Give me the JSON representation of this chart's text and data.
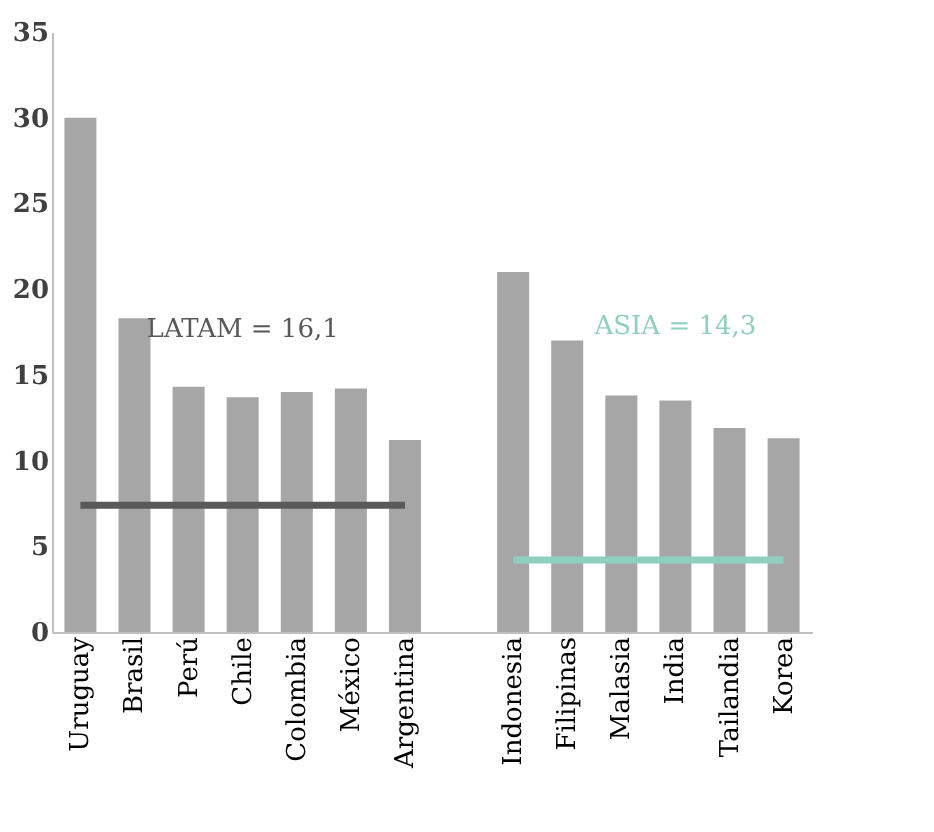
{
  "chart_data": {
    "type": "bar",
    "categories": [
      "Uruguay",
      "Brasil",
      "Perú",
      "Chile",
      "Colombia",
      "México",
      "Argentina",
      null,
      "Indonesia",
      "Filipinas",
      "Malasia",
      "India",
      "Tailandia",
      "Korea"
    ],
    "series": [
      {
        "color": "#a6a6a6",
        "values": [
          30,
          18.3,
          14.3,
          13.7,
          14.0,
          14.2,
          11.2,
          null,
          21.0,
          17.0,
          13.8,
          13.5,
          11.9,
          11.3
        ]
      },
      {
        "type": "line",
        "name": "LATAM = 16,1",
        "color": "#595959",
        "values": [
          7.4,
          7.4,
          7.4,
          7.4,
          7.4,
          7.4,
          7.4,
          null,
          null,
          null,
          null,
          null,
          null,
          null
        ]
      },
      {
        "type": "line",
        "name": "ASIA = 14,3",
        "color": "#8fcfbf",
        "values": [
          null,
          null,
          null,
          null,
          null,
          null,
          null,
          null,
          4.2,
          4.2,
          4.2,
          4.2,
          4.2,
          4.2
        ]
      }
    ],
    "ylim": [
      0,
      35
    ],
    "yticks": [
      0,
      5,
      10,
      15,
      20,
      25,
      30,
      35
    ],
    "grid": false
  }
}
